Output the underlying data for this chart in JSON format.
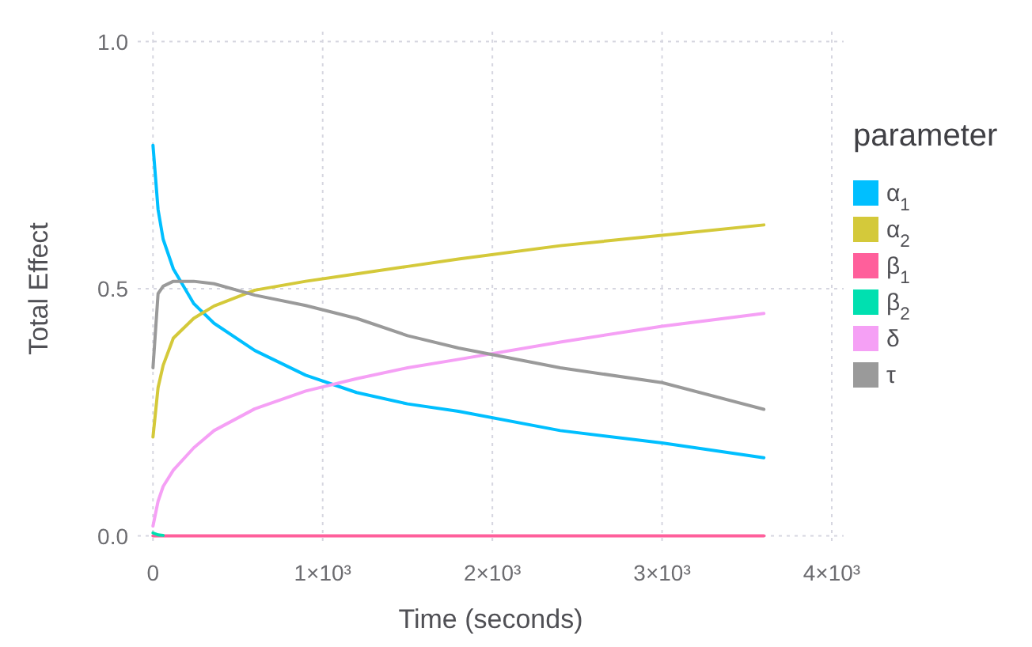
{
  "chart_data": {
    "type": "line",
    "xlabel": "Time (seconds)",
    "ylabel": "Total Effect",
    "legend_title": "parameter",
    "legend": "right",
    "grid": true,
    "line_style": "solid",
    "marker": "none",
    "x": [
      0,
      30,
      60,
      120,
      240,
      360,
      600,
      900,
      1200,
      1500,
      1800,
      2400,
      3000,
      3600
    ],
    "xlim": [
      -90,
      4070
    ],
    "ylim": [
      -0.02,
      1.02
    ],
    "xticks": [
      {
        "value": 0,
        "label": "0"
      },
      {
        "value": 1000,
        "label": "1×10³"
      },
      {
        "value": 2000,
        "label": "2×10³"
      },
      {
        "value": 3000,
        "label": "3×10³"
      },
      {
        "value": 4000,
        "label": "4×10³"
      }
    ],
    "yticks": [
      {
        "value": 0,
        "label": "0.0"
      },
      {
        "value": 0.5,
        "label": "0.5"
      },
      {
        "value": 1,
        "label": "1.0"
      }
    ],
    "series": [
      {
        "name": "α$_{1}$",
        "color": "#00bfff",
        "values": [
          0.79,
          0.66,
          0.6,
          0.54,
          0.47,
          0.43,
          0.375,
          0.325,
          0.29,
          0.267,
          0.252,
          0.213,
          0.188,
          0.158
        ]
      },
      {
        "name": "α$_{2}$",
        "color": "#d4c93a",
        "values": [
          0.2,
          0.3,
          0.345,
          0.4,
          0.44,
          0.465,
          0.497,
          0.515,
          0.53,
          0.545,
          0.56,
          0.587,
          0.608,
          0.629
        ]
      },
      {
        "name": "β$_{1}$",
        "color": "#ff5f9b",
        "values": [
          0,
          0,
          0,
          0,
          0,
          0,
          0,
          0,
          0,
          0,
          0,
          0,
          0,
          0
        ]
      },
      {
        "name": "β$_{2}$",
        "color": "#00e0b0",
        "values": [
          0.006,
          0.002,
          0.001,
          null,
          null,
          null,
          null,
          null,
          null,
          null,
          null,
          null,
          null,
          null
        ]
      },
      {
        "name": "δ",
        "color": "#f5a0f5",
        "values": [
          0.02,
          0.07,
          0.1,
          0.133,
          0.178,
          0.213,
          0.257,
          0.293,
          0.318,
          0.34,
          0.357,
          0.392,
          0.424,
          0.45
        ]
      },
      {
        "name": "τ",
        "color": "#9a9a9a",
        "values": [
          0.34,
          0.49,
          0.505,
          0.515,
          0.515,
          0.51,
          0.487,
          0.466,
          0.44,
          0.405,
          0.38,
          0.34,
          0.31,
          0.256
        ]
      }
    ]
  }
}
